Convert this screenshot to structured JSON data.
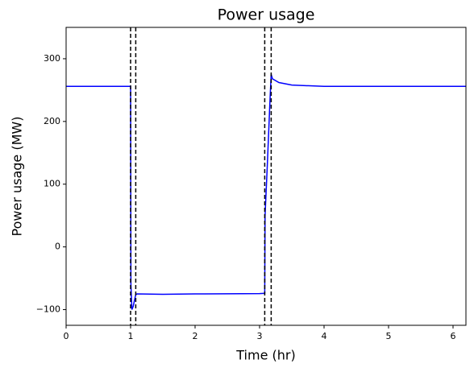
{
  "chart_data": {
    "type": "line",
    "title": "Power usage",
    "xlabel": "Time (hr)",
    "ylabel": "Power usage (MW)",
    "ylabel_color": "#0000ff",
    "x": [
      0,
      1.0,
      1.005,
      1.02,
      1.04,
      1.06,
      1.08,
      1.1,
      1.5,
      2,
      3,
      3.08,
      3.085,
      3.12,
      3.16,
      3.18,
      3.2,
      3.3,
      3.5,
      4,
      5,
      6.2
    ],
    "series": [
      {
        "color": "#0000ff",
        "values": [
          256,
          256,
          -60,
          -100,
          -95,
          -85,
          -76,
          -75,
          -75.5,
          -75,
          -74.5,
          -74,
          50,
          130,
          230,
          275,
          268,
          262,
          258,
          256,
          256,
          256
        ]
      }
    ],
    "vlines": [
      1.0,
      1.08,
      3.08,
      3.18
    ],
    "vline_color": "#000000",
    "xlim": [
      0,
      6.2
    ],
    "ylim": [
      -125,
      350
    ],
    "xticks": [
      0,
      1,
      2,
      3,
      4,
      5,
      6
    ],
    "yticks": [
      {
        "value": -100,
        "label": "−100"
      },
      0,
      100,
      200,
      300
    ]
  }
}
